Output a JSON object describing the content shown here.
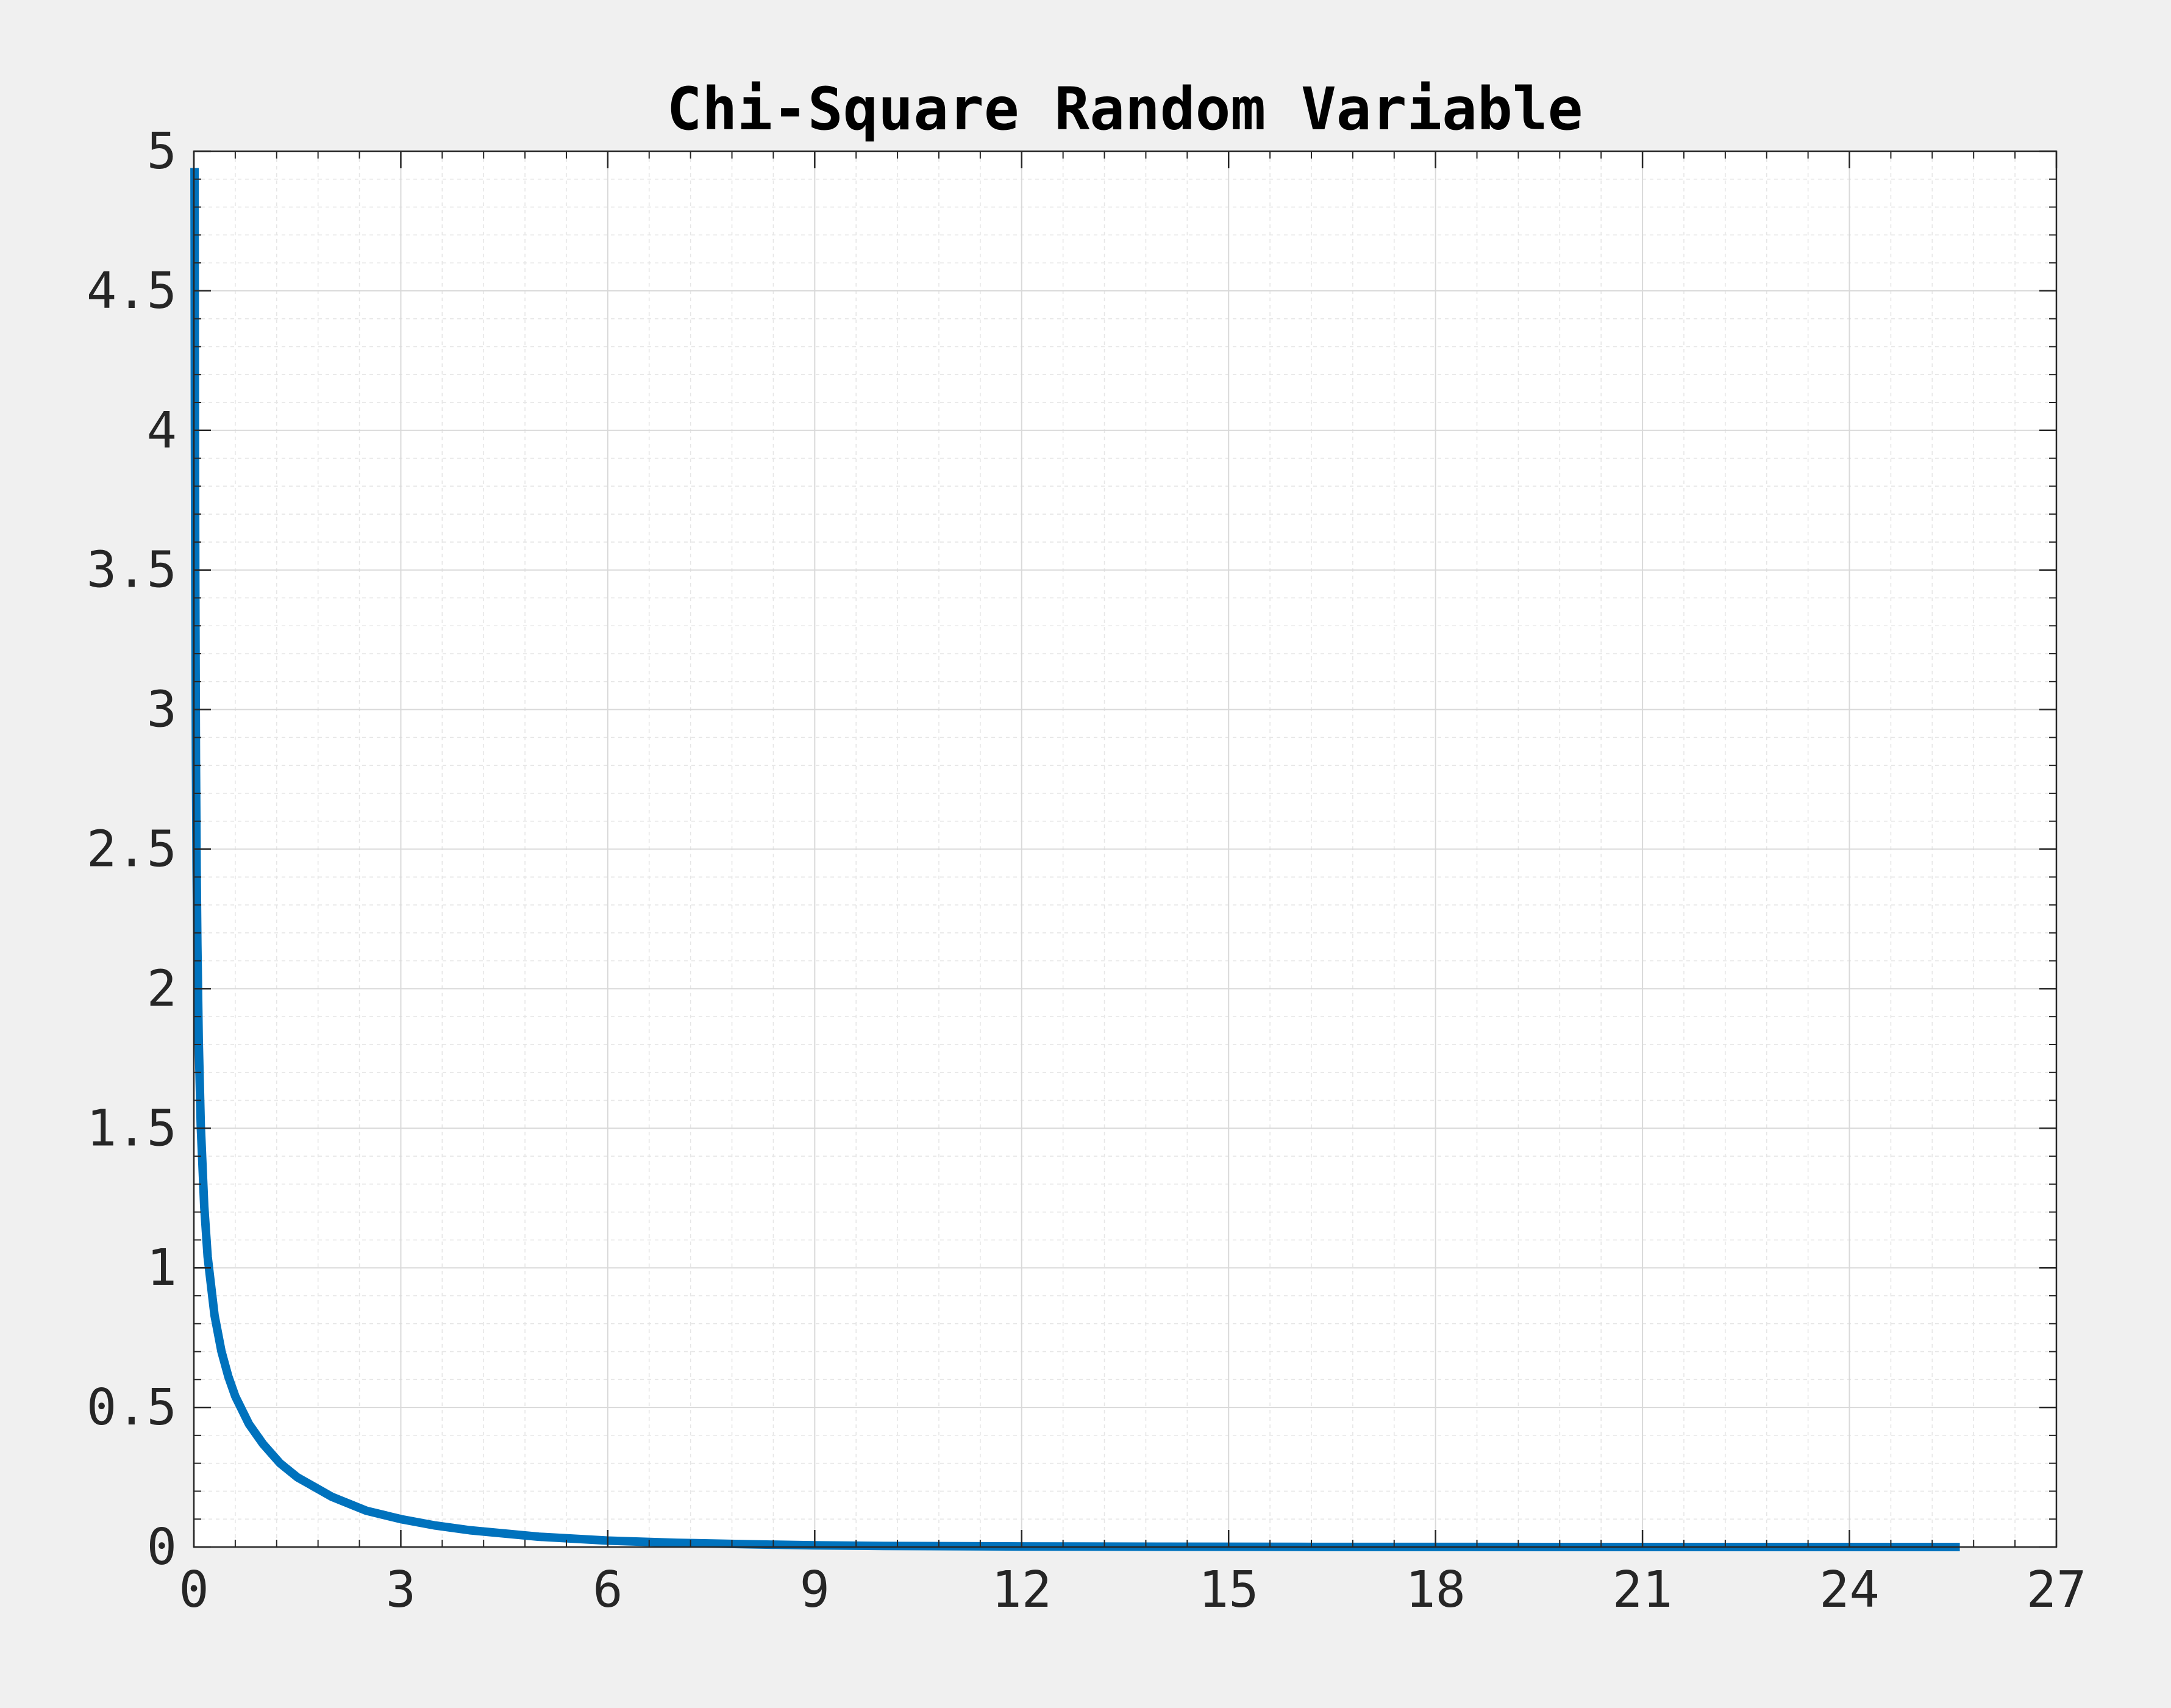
{
  "chart_data": {
    "type": "line",
    "title": "Chi-Square Random Variable",
    "xlabel": "",
    "ylabel": "",
    "xlim": [
      0,
      27
    ],
    "ylim": [
      0,
      5
    ],
    "xticks": [
      "0",
      "3",
      "6",
      "9",
      "12",
      "15",
      "18",
      "21",
      "24",
      "27"
    ],
    "xtick_values": [
      0,
      3,
      6,
      9,
      12,
      15,
      18,
      21,
      24,
      27
    ],
    "yticks": [
      "0",
      "0.5",
      "1",
      "1.5",
      "2",
      "2.5",
      "3",
      "3.5",
      "4",
      "4.5",
      "5"
    ],
    "ytick_values": [
      0,
      0.5,
      1,
      1.5,
      2,
      2.5,
      3,
      3.5,
      4,
      4.5,
      5
    ],
    "grid": true,
    "minor_grid": true,
    "line_color": "#0072bd",
    "series": [
      {
        "x": [
          0.01,
          0.015,
          0.02,
          0.03,
          0.04,
          0.05,
          0.07,
          0.1,
          0.15,
          0.2,
          0.3,
          0.4,
          0.5,
          0.6,
          0.8,
          1.0,
          1.25,
          1.5,
          2.0,
          2.5,
          3.0,
          3.5,
          4.0,
          5.0,
          6.0,
          7.0,
          8.0,
          9.0,
          10.0,
          12.0,
          14.0,
          16.0,
          18.0,
          20.0,
          22.0,
          24.0,
          25.6
        ],
        "values": [
          4.94,
          4.02,
          3.47,
          2.82,
          2.43,
          2.16,
          1.82,
          1.51,
          1.22,
          1.04,
          0.83,
          0.7,
          0.61,
          0.54,
          0.44,
          0.37,
          0.3,
          0.25,
          0.18,
          0.13,
          0.1,
          0.077,
          0.06,
          0.037,
          0.023,
          0.015,
          0.01,
          0.006,
          0.004,
          0.002,
          0.001,
          0.0004,
          0.0002,
          0.0001,
          0.0,
          0.0,
          0.0
        ]
      }
    ]
  }
}
